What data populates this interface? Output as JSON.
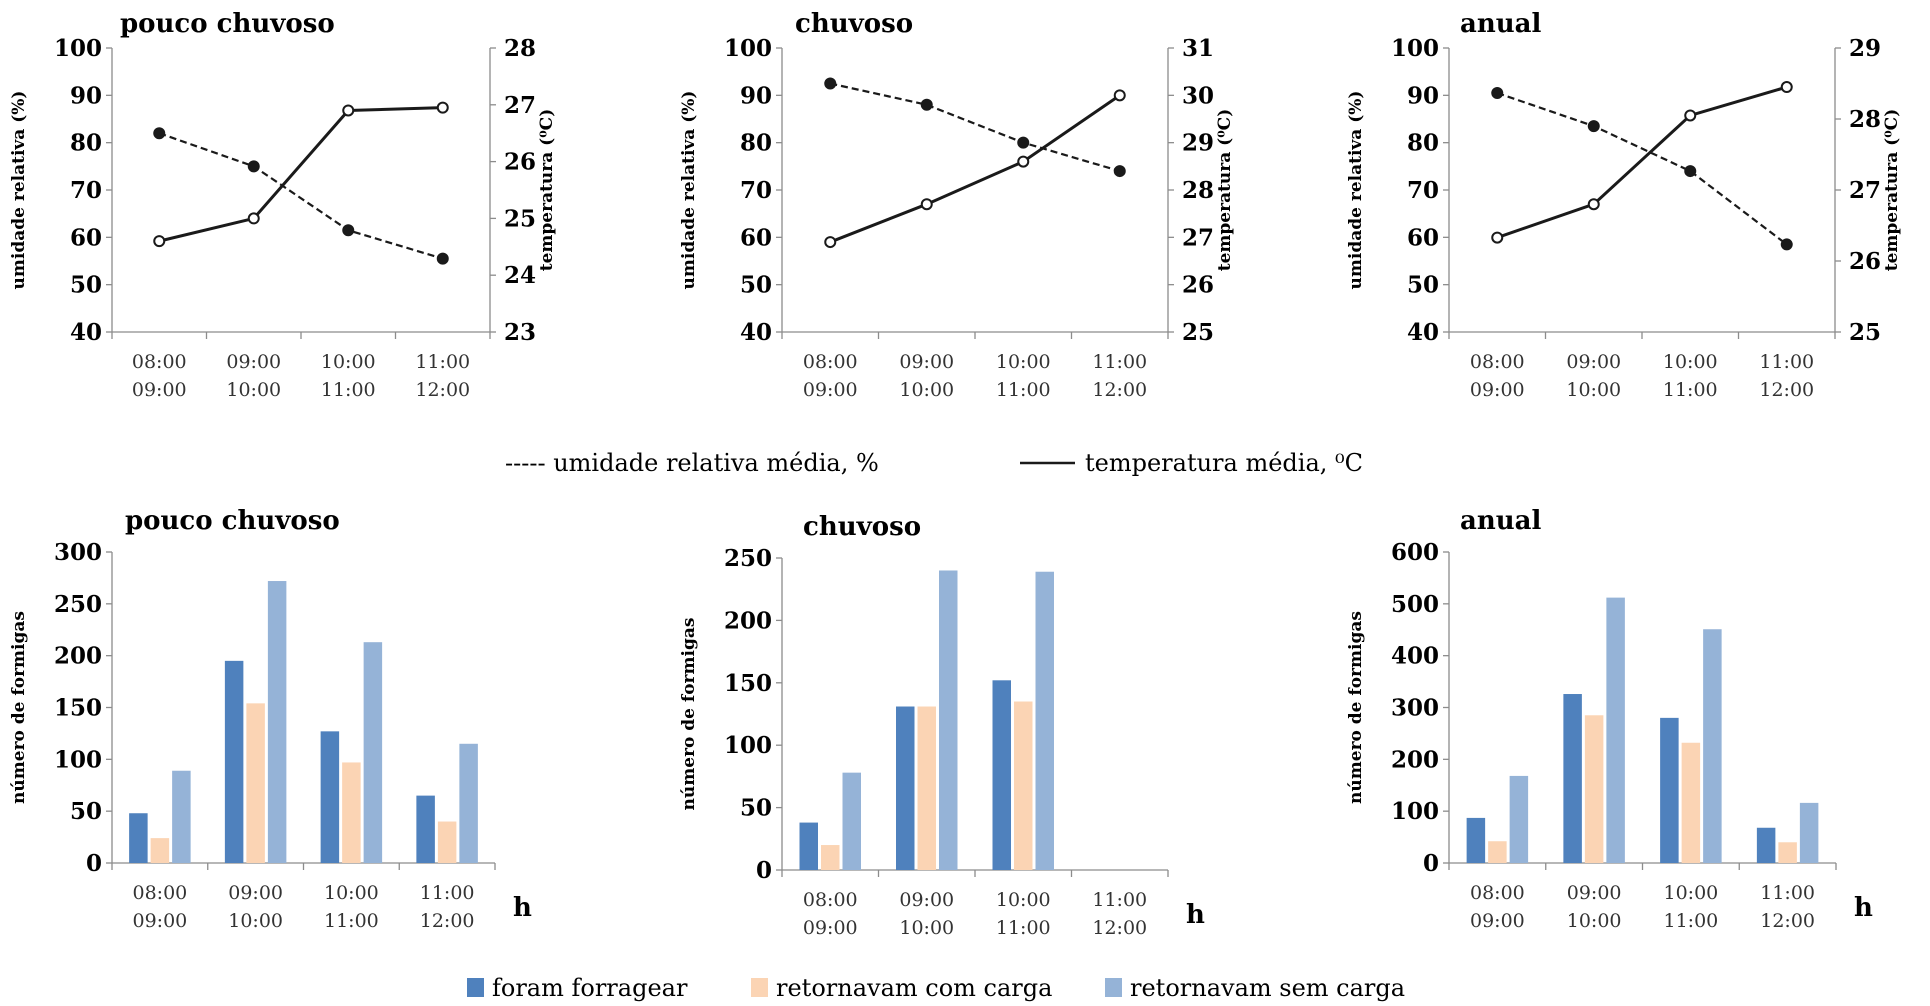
{
  "colors": {
    "foram": "#4f81bd",
    "com_carga": "#fbd4b4",
    "sem_carga": "#95b3d7",
    "lines": "#1a1a1a"
  },
  "legends": {
    "lines": [
      {
        "key": "humidity",
        "prefix": "----- ",
        "label": "umidade relativa média, %"
      },
      {
        "key": "temperature",
        "label": "temperatura média, ⁰C"
      }
    ],
    "bars": [
      "foram forragear",
      "retornavam com carga",
      "retornavam sem carga"
    ]
  },
  "chart_data": [
    {
      "type": "line",
      "title": "pouco chuvoso",
      "categories": [
        [
          "08:00",
          "09:00"
        ],
        [
          "09:00",
          "10:00"
        ],
        [
          "10:00",
          "11:00"
        ],
        [
          "11:00",
          "12:00"
        ]
      ],
      "ylabel": "umidade relativa (%)",
      "y2label": "temperatura (⁰C)",
      "ylim": [
        40,
        100
      ],
      "y2lim": [
        23,
        28
      ],
      "series": [
        {
          "name": "umidade relativa média, %",
          "axis": "left",
          "style": "dashed",
          "values": [
            82,
            75,
            61.5,
            55.5
          ]
        },
        {
          "name": "temperatura média, ⁰C",
          "axis": "right",
          "style": "solid",
          "values": [
            24.6,
            25.0,
            26.9,
            26.95
          ]
        }
      ]
    },
    {
      "type": "line",
      "title": "chuvoso",
      "categories": [
        [
          "08:00",
          "09:00"
        ],
        [
          "09:00",
          "10:00"
        ],
        [
          "10:00",
          "11:00"
        ],
        [
          "11:00",
          "12:00"
        ]
      ],
      "ylabel": "umidade relativa (%)",
      "y2label": "temperatura (⁰C)",
      "ylim": [
        40,
        100
      ],
      "y2lim": [
        25,
        31
      ],
      "series": [
        {
          "name": "umidade relativa média, %",
          "axis": "left",
          "style": "dashed",
          "values": [
            92.5,
            88,
            80,
            74
          ]
        },
        {
          "name": "temperatura média, ⁰C",
          "axis": "right",
          "style": "solid",
          "values": [
            26.9,
            27.7,
            28.6,
            30.0
          ]
        }
      ]
    },
    {
      "type": "line",
      "title": "anual",
      "categories": [
        [
          "08:00",
          "09:00"
        ],
        [
          "09:00",
          "10:00"
        ],
        [
          "10:00",
          "11:00"
        ],
        [
          "11:00",
          "12:00"
        ]
      ],
      "ylabel": "umidade relativa (%)",
      "y2label": "temperatura (⁰C)",
      "ylim": [
        40,
        100
      ],
      "y2lim": [
        25,
        29
      ],
      "series": [
        {
          "name": "umidade relativa média, %",
          "axis": "left",
          "style": "dashed",
          "values": [
            90.5,
            83.5,
            74,
            58.5
          ]
        },
        {
          "name": "temperatura média, ⁰C",
          "axis": "right",
          "style": "solid",
          "values": [
            26.33,
            26.8,
            28.05,
            28.45
          ]
        }
      ]
    },
    {
      "type": "bar",
      "title": "pouco chuvoso",
      "categories": [
        [
          "08:00",
          "09:00"
        ],
        [
          "09:00",
          "10:00"
        ],
        [
          "10:00",
          "11:00"
        ],
        [
          "11:00",
          "12:00"
        ]
      ],
      "xlabel": "h",
      "ylabel": "número de formigas",
      "ylim": [
        0,
        300
      ],
      "series": [
        {
          "name": "foram forragear",
          "values": [
            48,
            195,
            127,
            65
          ]
        },
        {
          "name": "retornavam com carga",
          "values": [
            24,
            154,
            97,
            40
          ]
        },
        {
          "name": "retornavam sem carga",
          "values": [
            89,
            272,
            213,
            115
          ]
        }
      ]
    },
    {
      "type": "bar",
      "title": "chuvoso",
      "categories": [
        [
          "08:00",
          "09:00"
        ],
        [
          "09:00",
          "10:00"
        ],
        [
          "10:00",
          "11:00"
        ],
        [
          "11:00",
          "12:00"
        ]
      ],
      "xlabel": "h",
      "ylabel": "número de formigas",
      "ylim": [
        0,
        250
      ],
      "series": [
        {
          "name": "foram forragear",
          "values": [
            38,
            131,
            152,
            0
          ]
        },
        {
          "name": "retornavam com carga",
          "values": [
            20,
            131,
            135,
            0
          ]
        },
        {
          "name": "retornavam sem carga",
          "values": [
            78,
            240,
            239,
            0
          ]
        }
      ]
    },
    {
      "type": "bar",
      "title": "anual",
      "categories": [
        [
          "08:00",
          "09:00"
        ],
        [
          "09:00",
          "10:00"
        ],
        [
          "10:00",
          "11:00"
        ],
        [
          "11:00",
          "12:00"
        ]
      ],
      "xlabel": "h",
      "ylabel": "número de formigas",
      "ylim": [
        0,
        600
      ],
      "series": [
        {
          "name": "foram forragear",
          "values": [
            87,
            326,
            280,
            68
          ]
        },
        {
          "name": "retornavam com carga",
          "values": [
            42,
            285,
            232,
            40
          ]
        },
        {
          "name": "retornavam sem carga",
          "values": [
            168,
            512,
            451,
            116
          ]
        }
      ]
    }
  ]
}
